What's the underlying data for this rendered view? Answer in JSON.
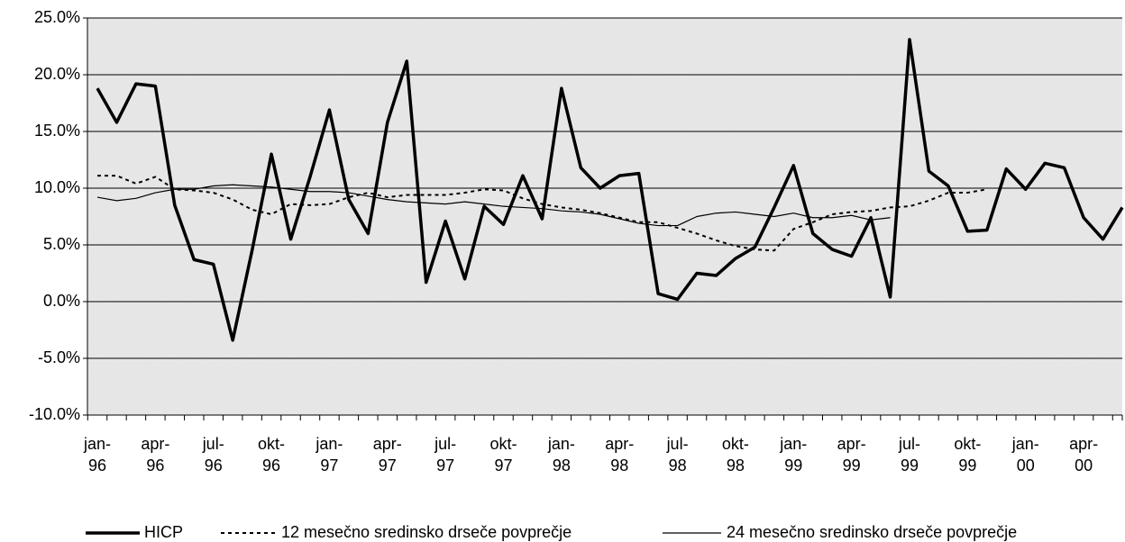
{
  "chart_data": {
    "type": "line",
    "categories": [
      "jan-96",
      null,
      null,
      "apr-96",
      null,
      null,
      "jul-96",
      null,
      null,
      "okt-96",
      null,
      null,
      "jan-97",
      null,
      null,
      "apr-97",
      null,
      null,
      "jul-97",
      null,
      null,
      "okt-97",
      null,
      null,
      "jan-98",
      null,
      null,
      "apr-98",
      null,
      null,
      "jul-98",
      null,
      null,
      "okt-98",
      null,
      null,
      "jan-99",
      null,
      null,
      "apr-99",
      null,
      null,
      "jul-99",
      null,
      null,
      "okt-99",
      null,
      null,
      "jan-00",
      null,
      null,
      "apr-00",
      null,
      null
    ],
    "series": [
      {
        "name": "HICP",
        "color": "#000000",
        "width": 3.5,
        "dash": "solid",
        "values": [
          18.8,
          15.8,
          19.2,
          19.0,
          8.5,
          3.7,
          3.3,
          -3.4,
          4.5,
          13.0,
          5.5,
          11.0,
          16.9,
          9.0,
          6.0,
          15.8,
          21.2,
          1.7,
          7.1,
          2.0,
          8.4,
          6.8,
          11.1,
          7.3,
          18.8,
          11.8,
          10.0,
          11.1,
          11.3,
          0.7,
          0.2,
          2.5,
          2.3,
          3.8,
          4.8,
          8.3,
          12.0,
          6.0,
          4.6,
          4.0,
          7.4,
          0.4,
          23.1,
          11.5,
          10.2,
          6.2,
          6.3,
          11.7,
          9.9,
          12.2,
          11.8,
          7.4,
          5.5,
          8.3
        ]
      },
      {
        "name": "12 mesečno sredinsko drseče povprečje",
        "color": "#000000",
        "width": 2,
        "dash": "dotted",
        "values": [
          11.1,
          11.1,
          10.4,
          11.0,
          9.9,
          9.8,
          9.6,
          9.0,
          8.1,
          7.7,
          8.6,
          8.5,
          8.6,
          9.2,
          9.6,
          9.2,
          9.4,
          9.4,
          9.4,
          9.6,
          9.9,
          9.8,
          9.1,
          8.6,
          8.3,
          8.1,
          7.8,
          7.4,
          7.0,
          7.0,
          6.5,
          6.0,
          5.4,
          4.9,
          4.6,
          4.5,
          6.4,
          7.0,
          7.7,
          7.9,
          8.0,
          8.3,
          8.4,
          8.9,
          9.6,
          9.6,
          9.9,
          null,
          null,
          null,
          null,
          null,
          null,
          null
        ]
      },
      {
        "name": "24 mesečno sredinsko drseče povprečje",
        "color": "#000000",
        "width": 1.2,
        "dash": "solid",
        "values": [
          9.2,
          8.9,
          9.1,
          9.6,
          9.9,
          9.9,
          10.2,
          10.3,
          10.2,
          10.1,
          9.9,
          9.7,
          9.7,
          9.6,
          9.3,
          9.0,
          8.8,
          8.7,
          8.6,
          8.8,
          8.6,
          8.4,
          8.3,
          8.2,
          8.0,
          7.9,
          7.7,
          7.3,
          6.9,
          6.7,
          6.7,
          7.5,
          7.8,
          7.9,
          7.7,
          7.5,
          7.8,
          7.4,
          7.4,
          7.6,
          7.2,
          7.4,
          null,
          null,
          null,
          null,
          null,
          null,
          null,
          null,
          null,
          null,
          null,
          null
        ]
      }
    ],
    "ylim": [
      -10,
      25
    ],
    "yticks": [
      {
        "value": -10,
        "label": "-10.0%"
      },
      {
        "value": -5,
        "label": "-5.0%"
      },
      {
        "value": 0,
        "label": "0.0%"
      },
      {
        "value": 5,
        "label": "5.0%"
      },
      {
        "value": 10,
        "label": "10.0%"
      },
      {
        "value": 15,
        "label": "15.0%"
      },
      {
        "value": 20,
        "label": "20.0%"
      },
      {
        "value": 25,
        "label": "25.0%"
      }
    ],
    "grid": true,
    "legend": "bottom"
  }
}
